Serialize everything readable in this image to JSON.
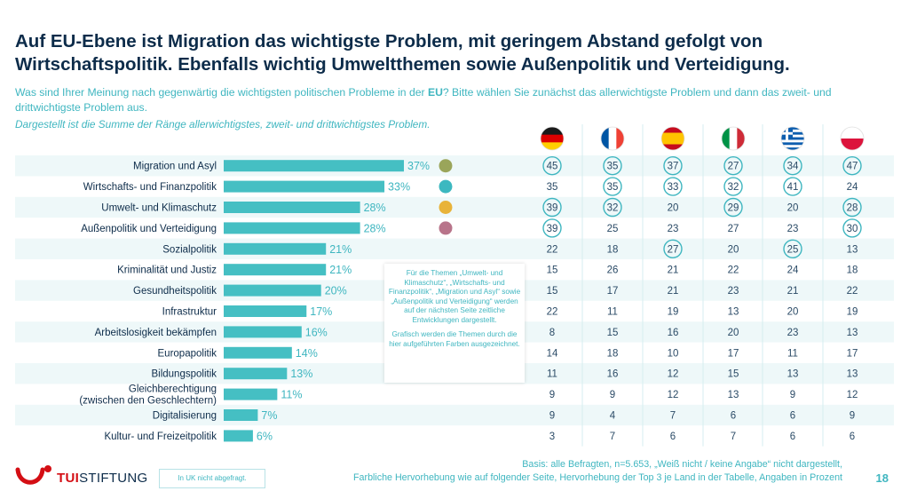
{
  "title": "Auf EU-Ebene ist Migration das wichtigste Problem, mit geringem Abstand gefolgt von Wirtschaftspolitik. Ebenfalls wichtig Umweltthemen sowie Außenpolitik und Verteidigung.",
  "question_prefix": "Was sind Ihrer Meinung nach gegenwärtig die wichtigsten politischen Probleme in der ",
  "question_emph": "EU",
  "question_suffix": "? Bitte wählen Sie zunächst das allerwichtigste Problem und dann das zweit- und drittwichtigste Problem aus.",
  "note": "Dargestellt ist die Summe der Ränge allerwichtigstes, zweit- und drittwichtigstes Problem.",
  "callout_p1": "Für die Themen „Umwelt- und Klimaschutz“, „Wirtschafts- und Finanzpolitik“, „Migration und Asyl“ sowie „Außenpolitik und Verteidigung“ werden auf der nächsten Seite zeitliche Entwicklungen dargestellt.",
  "callout_p2": "Grafisch werden die Themen durch die hier aufgeführten Farben ausgezeichnet.",
  "footer_line1": "Basis: alle Befragten, n=5.653, „Weiß nicht / keine Angabe“ nicht dargestellt,",
  "footer_line2": "Farbliche Hervorhebung wie auf folgender Seite, Hervorhebung der Top 3 je Land in der Tabelle, Angaben in Prozent",
  "page_number": "18",
  "logo_tui": "TUI",
  "logo_stiftung": "STIFTUNG",
  "uk_note": "In UK nicht abgefragt.",
  "colors": {
    "bar": "#45bfc3",
    "accent_text": "#3fb6c0",
    "title": "#0d2c4a",
    "row_alt": "#eef8f9",
    "migration_dot": "#9aa55a",
    "wirtschaft_dot": "#3cb8c0",
    "umwelt_dot": "#e8b339",
    "aussen_dot": "#b8748a",
    "logo_red": "#d40e14"
  },
  "chart_data": {
    "type": "bar",
    "orientation": "horizontal",
    "unit": "%",
    "categories": [
      "Migration und Asyl",
      "Wirtschafts- und Finanzpolitik",
      "Umwelt- und Klimaschutz",
      "Außenpolitik und Verteidigung",
      "Sozialpolitik",
      "Kriminalität und Justiz",
      "Gesundheitspolitik",
      "Infrastruktur",
      "Arbeitslosigkeit bekämpfen",
      "Europapolitik",
      "Bildungspolitik",
      "Gleichberechtigung (zwischen den Geschlechtern)",
      "Digitalisierung",
      "Kultur- und Freizeitpolitik"
    ],
    "category_lines": [
      [
        "Migration und Asyl"
      ],
      [
        "Wirtschafts- und Finanzpolitik"
      ],
      [
        "Umwelt- und Klimaschutz"
      ],
      [
        "Außenpolitik und Verteidigung"
      ],
      [
        "Sozialpolitik"
      ],
      [
        "Kriminalität und Justiz"
      ],
      [
        "Gesundheitspolitik"
      ],
      [
        "Infrastruktur"
      ],
      [
        "Arbeitslosigkeit bekämpfen"
      ],
      [
        "Europapolitik"
      ],
      [
        "Bildungspolitik"
      ],
      [
        "Gleichberechtigung",
        "(zwischen den Geschlechtern)"
      ],
      [
        "Digitalisierung"
      ],
      [
        "Kultur- und Freizeitpolitik"
      ]
    ],
    "values": [
      37,
      33,
      28,
      28,
      21,
      21,
      20,
      17,
      16,
      14,
      13,
      11,
      7,
      6
    ],
    "value_labels": [
      "37%",
      "33%",
      "28%",
      "28%",
      "21%",
      "21%",
      "20%",
      "17%",
      "16%",
      "14%",
      "13%",
      "11%",
      "7%",
      "6%"
    ],
    "highlight_dots": [
      "migration",
      "wirtschaft",
      "umwelt",
      "aussen"
    ],
    "xlim": [
      0,
      37
    ],
    "table": {
      "country_flags": [
        "germany-flag",
        "france-flag",
        "spain-flag",
        "italy-flag",
        "greece-flag",
        "poland-flag"
      ],
      "rows": [
        [
          45,
          35,
          37,
          27,
          34,
          47
        ],
        [
          35,
          35,
          33,
          32,
          41,
          24
        ],
        [
          39,
          32,
          20,
          29,
          20,
          28
        ],
        [
          39,
          25,
          23,
          27,
          23,
          30
        ],
        [
          22,
          18,
          27,
          20,
          25,
          13
        ],
        [
          15,
          26,
          21,
          22,
          24,
          18
        ],
        [
          15,
          17,
          21,
          23,
          21,
          22
        ],
        [
          22,
          11,
          19,
          13,
          20,
          19
        ],
        [
          8,
          15,
          16,
          20,
          23,
          13
        ],
        [
          14,
          18,
          10,
          17,
          11,
          17
        ],
        [
          11,
          16,
          12,
          15,
          13,
          13
        ],
        [
          9,
          9,
          12,
          13,
          9,
          12
        ],
        [
          9,
          4,
          7,
          6,
          6,
          9
        ],
        [
          3,
          7,
          6,
          7,
          6,
          6
        ]
      ],
      "top3_circled": [
        [
          true,
          true,
          true,
          true,
          true,
          true
        ],
        [
          false,
          true,
          true,
          true,
          true,
          false
        ],
        [
          true,
          true,
          false,
          true,
          false,
          true
        ],
        [
          true,
          false,
          false,
          false,
          false,
          true
        ],
        [
          false,
          false,
          true,
          false,
          true,
          false
        ],
        [
          false,
          false,
          false,
          false,
          false,
          false
        ],
        [
          false,
          false,
          false,
          false,
          false,
          false
        ],
        [
          false,
          false,
          false,
          false,
          false,
          false
        ],
        [
          false,
          false,
          false,
          false,
          false,
          false
        ],
        [
          false,
          false,
          false,
          false,
          false,
          false
        ],
        [
          false,
          false,
          false,
          false,
          false,
          false
        ],
        [
          false,
          false,
          false,
          false,
          false,
          false
        ],
        [
          false,
          false,
          false,
          false,
          false,
          false
        ],
        [
          false,
          false,
          false,
          false,
          false,
          false
        ]
      ]
    }
  }
}
